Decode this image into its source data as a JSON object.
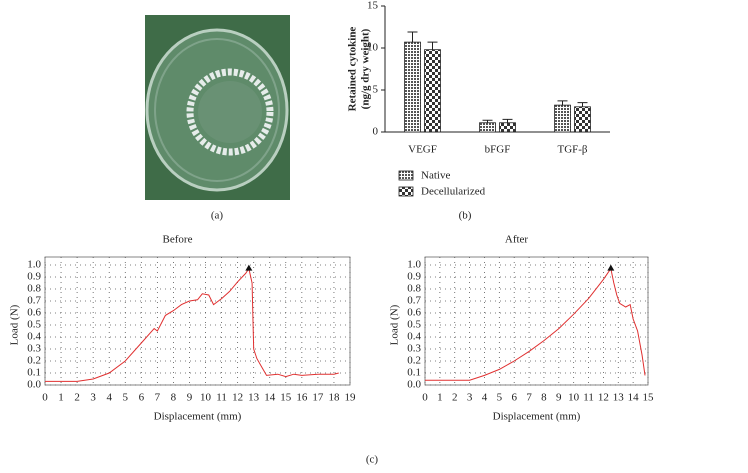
{
  "panel_labels": [
    "(a)",
    "(b)",
    "(c)"
  ],
  "chart_data": [
    {
      "type": "bar",
      "ylabel": [
        "Retained cytokine",
        "(ng/g dry weight)"
      ],
      "categories": [
        "VEGF",
        "bFGF",
        "TGF-β"
      ],
      "series": [
        {
          "name": "Native",
          "color": "#9a9a9a",
          "values": [
            10.7,
            1.1,
            3.2
          ],
          "errors": [
            1.2,
            0.3,
            0.5
          ]
        },
        {
          "name": "Decellularized",
          "color": "#d8d8d8",
          "values": [
            9.8,
            1.1,
            3.0
          ],
          "errors": [
            0.9,
            0.4,
            0.5
          ]
        }
      ],
      "ylim": [
        0,
        15
      ],
      "yticks": [
        0,
        5,
        10,
        15
      ]
    },
    {
      "type": "line",
      "title": "Before",
      "xlabel": "Displacement (mm)",
      "ylabel": "Load (N)",
      "color": "#e03030",
      "x": [
        0,
        2,
        3,
        4,
        5,
        6,
        6.8,
        7,
        7.5,
        8,
        8.5,
        9,
        9.5,
        9.8,
        10.2,
        10.5,
        11,
        11.5,
        12,
        12.5,
        12.7,
        12.9,
        13.0,
        13.2,
        13.5,
        13.8,
        14.5,
        15,
        15.5,
        16,
        17,
        18,
        18.3
      ],
      "values": [
        0.03,
        0.03,
        0.05,
        0.1,
        0.2,
        0.35,
        0.47,
        0.45,
        0.58,
        0.62,
        0.67,
        0.7,
        0.71,
        0.76,
        0.75,
        0.67,
        0.72,
        0.78,
        0.86,
        0.93,
        0.97,
        0.85,
        0.3,
        0.22,
        0.15,
        0.08,
        0.09,
        0.07,
        0.09,
        0.08,
        0.09,
        0.09,
        0.1
      ],
      "peak": {
        "x": 12.7,
        "y": 0.97
      },
      "xlim": [
        0,
        19
      ],
      "xticks": [
        0,
        1,
        2,
        3,
        4,
        5,
        6,
        7,
        8,
        9,
        10,
        11,
        12,
        13,
        14,
        15,
        16,
        17,
        18,
        19
      ],
      "ylim": [
        0,
        1
      ],
      "yticks": [
        {
          "value": 0,
          "label": "0.0"
        },
        0.1,
        0.2,
        0.3,
        0.4,
        0.5,
        0.6,
        0.7,
        0.8,
        0.9,
        {
          "value": 1,
          "label": "1.0"
        }
      ],
      "grid": true
    },
    {
      "type": "line",
      "title": "After",
      "xlabel": "Displacement (mm)",
      "ylabel": "Load (N)",
      "color": "#e03030",
      "x": [
        0,
        3,
        4,
        5,
        6,
        7,
        8,
        9,
        10,
        11,
        12,
        12.5,
        12.7,
        12.9,
        13.1,
        13.5,
        13.8,
        14,
        14.3,
        14.6,
        14.8
      ],
      "values": [
        0.04,
        0.04,
        0.08,
        0.13,
        0.2,
        0.28,
        0.37,
        0.47,
        0.59,
        0.72,
        0.88,
        0.97,
        0.85,
        0.75,
        0.68,
        0.65,
        0.67,
        0.55,
        0.45,
        0.25,
        0.08
      ],
      "peak": {
        "x": 12.5,
        "y": 0.97
      },
      "xlim": [
        0,
        15
      ],
      "xticks": [
        0,
        1,
        2,
        3,
        4,
        5,
        6,
        7,
        8,
        9,
        10,
        11,
        12,
        13,
        14,
        15
      ],
      "ylim": [
        0,
        1
      ],
      "yticks": [
        {
          "value": 0,
          "label": "0.0"
        },
        0.1,
        0.2,
        0.3,
        0.4,
        0.5,
        0.6,
        0.7,
        0.8,
        0.9,
        {
          "value": 1,
          "label": "1.0"
        }
      ],
      "grid": true
    }
  ]
}
